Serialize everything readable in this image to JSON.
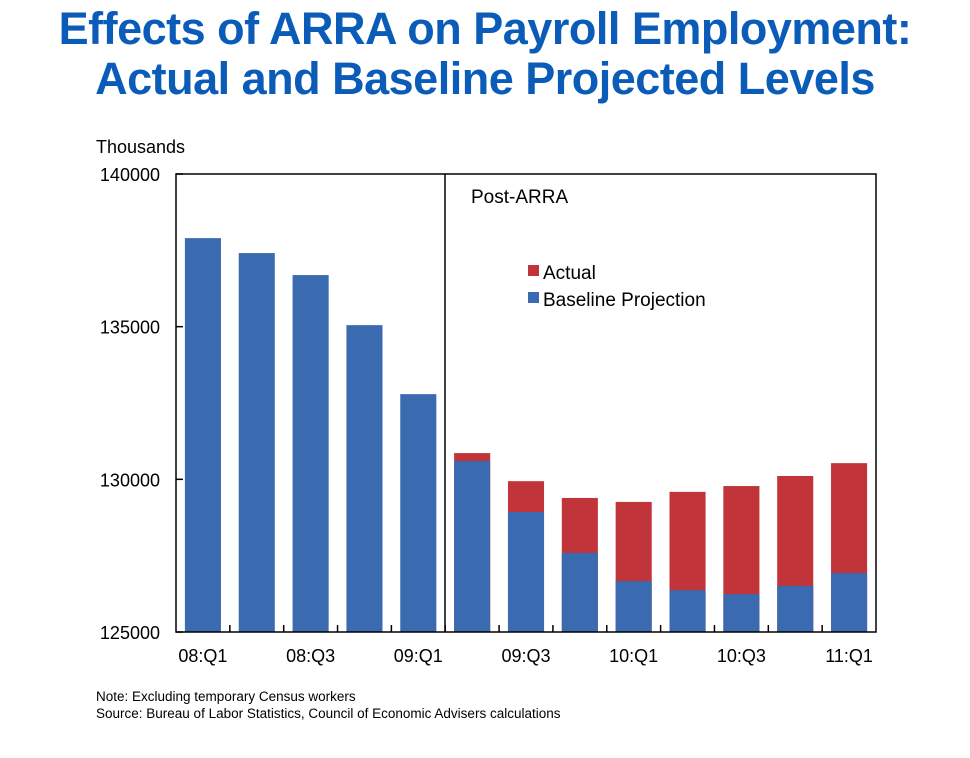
{
  "chart_data": {
    "type": "bar",
    "stacked": true,
    "title": "Effects of ARRA on Payroll Employment:",
    "subtitle": "Actual and Baseline Projected Levels",
    "ylabel": "Thousands",
    "xlabel": "",
    "ylim": [
      125000,
      140000
    ],
    "yticks": [
      125000,
      130000,
      135000,
      140000
    ],
    "categories": [
      "08:Q1",
      "08:Q2",
      "08:Q3",
      "08:Q4",
      "09:Q1",
      "09:Q2",
      "09:Q3",
      "09:Q4",
      "10:Q1",
      "10:Q2",
      "10:Q3",
      "10:Q4",
      "11:Q1"
    ],
    "xtick_labels": [
      "08:Q1",
      "",
      "08:Q3",
      "",
      "09:Q1",
      "",
      "09:Q3",
      "",
      "10:Q1",
      "",
      "10:Q3",
      "",
      "11:Q1"
    ],
    "series": [
      {
        "name": "Baseline Projection",
        "color": "#3a6bb1",
        "values": [
          137900,
          137410,
          136690,
          135050,
          132790,
          130600,
          128930,
          127590,
          126670,
          126370,
          126240,
          126510,
          126930
        ]
      },
      {
        "name": "Actual",
        "color": "#c0343a",
        "values": [
          null,
          null,
          null,
          null,
          null,
          130860,
          129940,
          129390,
          129260,
          129590,
          129780,
          130110,
          130530
        ]
      }
    ],
    "annotation": {
      "text": "Post-ARRA",
      "divider_after": "09:Q1"
    },
    "legend": {
      "position": "upper-center-right",
      "entries": [
        "Actual",
        "Baseline Projection"
      ]
    },
    "grid": false
  },
  "title": {
    "line1": "Effects of ARRA on Payroll Employment:",
    "line2": "Actual and Baseline Projected Levels"
  },
  "notes": {
    "note": "Note: Excluding temporary Census workers",
    "source": "Source: Bureau of Labor Statistics, Council of Economic Advisers calculations"
  }
}
